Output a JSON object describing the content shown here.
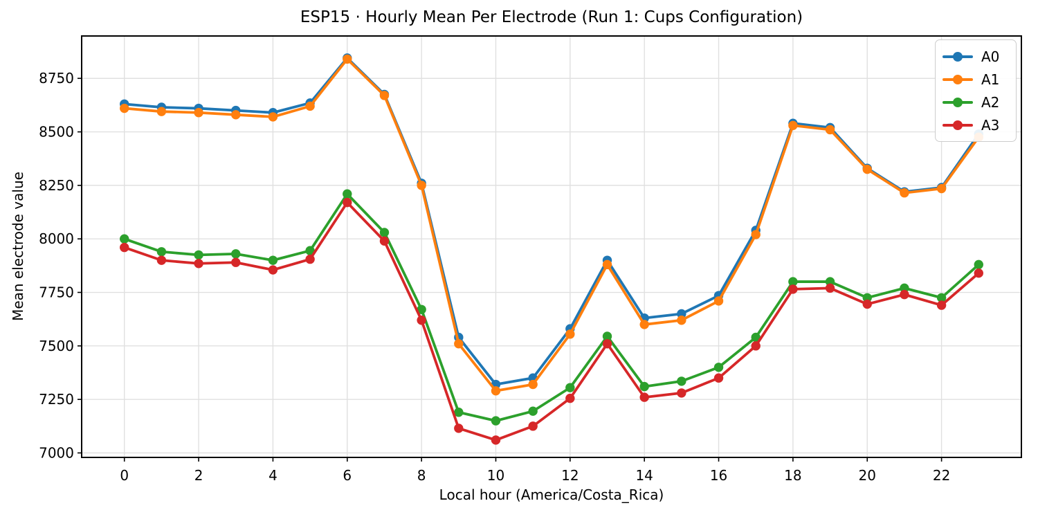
{
  "chart_data": {
    "type": "line",
    "title": "ESP15 · Hourly Mean Per Electrode (Run 1: Cups Configuration)",
    "xlabel": "Local hour (America/Costa_Rica)",
    "ylabel": "Mean electrode value",
    "x": [
      0,
      1,
      2,
      3,
      4,
      5,
      6,
      7,
      8,
      9,
      10,
      11,
      12,
      13,
      14,
      15,
      16,
      17,
      18,
      19,
      20,
      21,
      22,
      23
    ],
    "series": [
      {
        "name": "A0",
        "color": "#1f77b4",
        "values": [
          8630,
          8615,
          8610,
          8600,
          8590,
          8635,
          8845,
          8675,
          8260,
          7540,
          7320,
          7350,
          7580,
          7900,
          7630,
          7650,
          7735,
          8040,
          8540,
          8520,
          8330,
          8220,
          8240,
          8490
        ]
      },
      {
        "name": "A1",
        "color": "#ff7f0e",
        "values": [
          8610,
          8595,
          8590,
          8580,
          8570,
          8620,
          8840,
          8670,
          8250,
          7510,
          7290,
          7320,
          7555,
          7880,
          7600,
          7620,
          7710,
          8020,
          8530,
          8510,
          8325,
          8215,
          8235,
          8475
        ]
      },
      {
        "name": "A2",
        "color": "#2ca02c",
        "values": [
          8000,
          7940,
          7925,
          7930,
          7900,
          7945,
          8210,
          8030,
          7670,
          7190,
          7150,
          7195,
          7305,
          7545,
          7310,
          7335,
          7400,
          7540,
          7800,
          7800,
          7725,
          7770,
          7725,
          7880
        ]
      },
      {
        "name": "A3",
        "color": "#d62728",
        "values": [
          7960,
          7900,
          7885,
          7890,
          7855,
          7905,
          8170,
          7990,
          7620,
          7115,
          7060,
          7125,
          7255,
          7510,
          7260,
          7280,
          7350,
          7500,
          7765,
          7770,
          7695,
          7740,
          7690,
          7840
        ]
      }
    ],
    "xticks": [
      0,
      2,
      4,
      6,
      8,
      10,
      12,
      14,
      16,
      18,
      20,
      22
    ],
    "yticks": [
      7000,
      7250,
      7500,
      7750,
      8000,
      8250,
      8500,
      8750
    ],
    "xlim": [
      -1.15,
      24.15
    ],
    "ylim": [
      6979,
      8948
    ],
    "grid": true,
    "grid_color": "#e0e0e0",
    "spine_color": "#000000",
    "tick_color": "#000000",
    "legend_position": "upper right"
  }
}
